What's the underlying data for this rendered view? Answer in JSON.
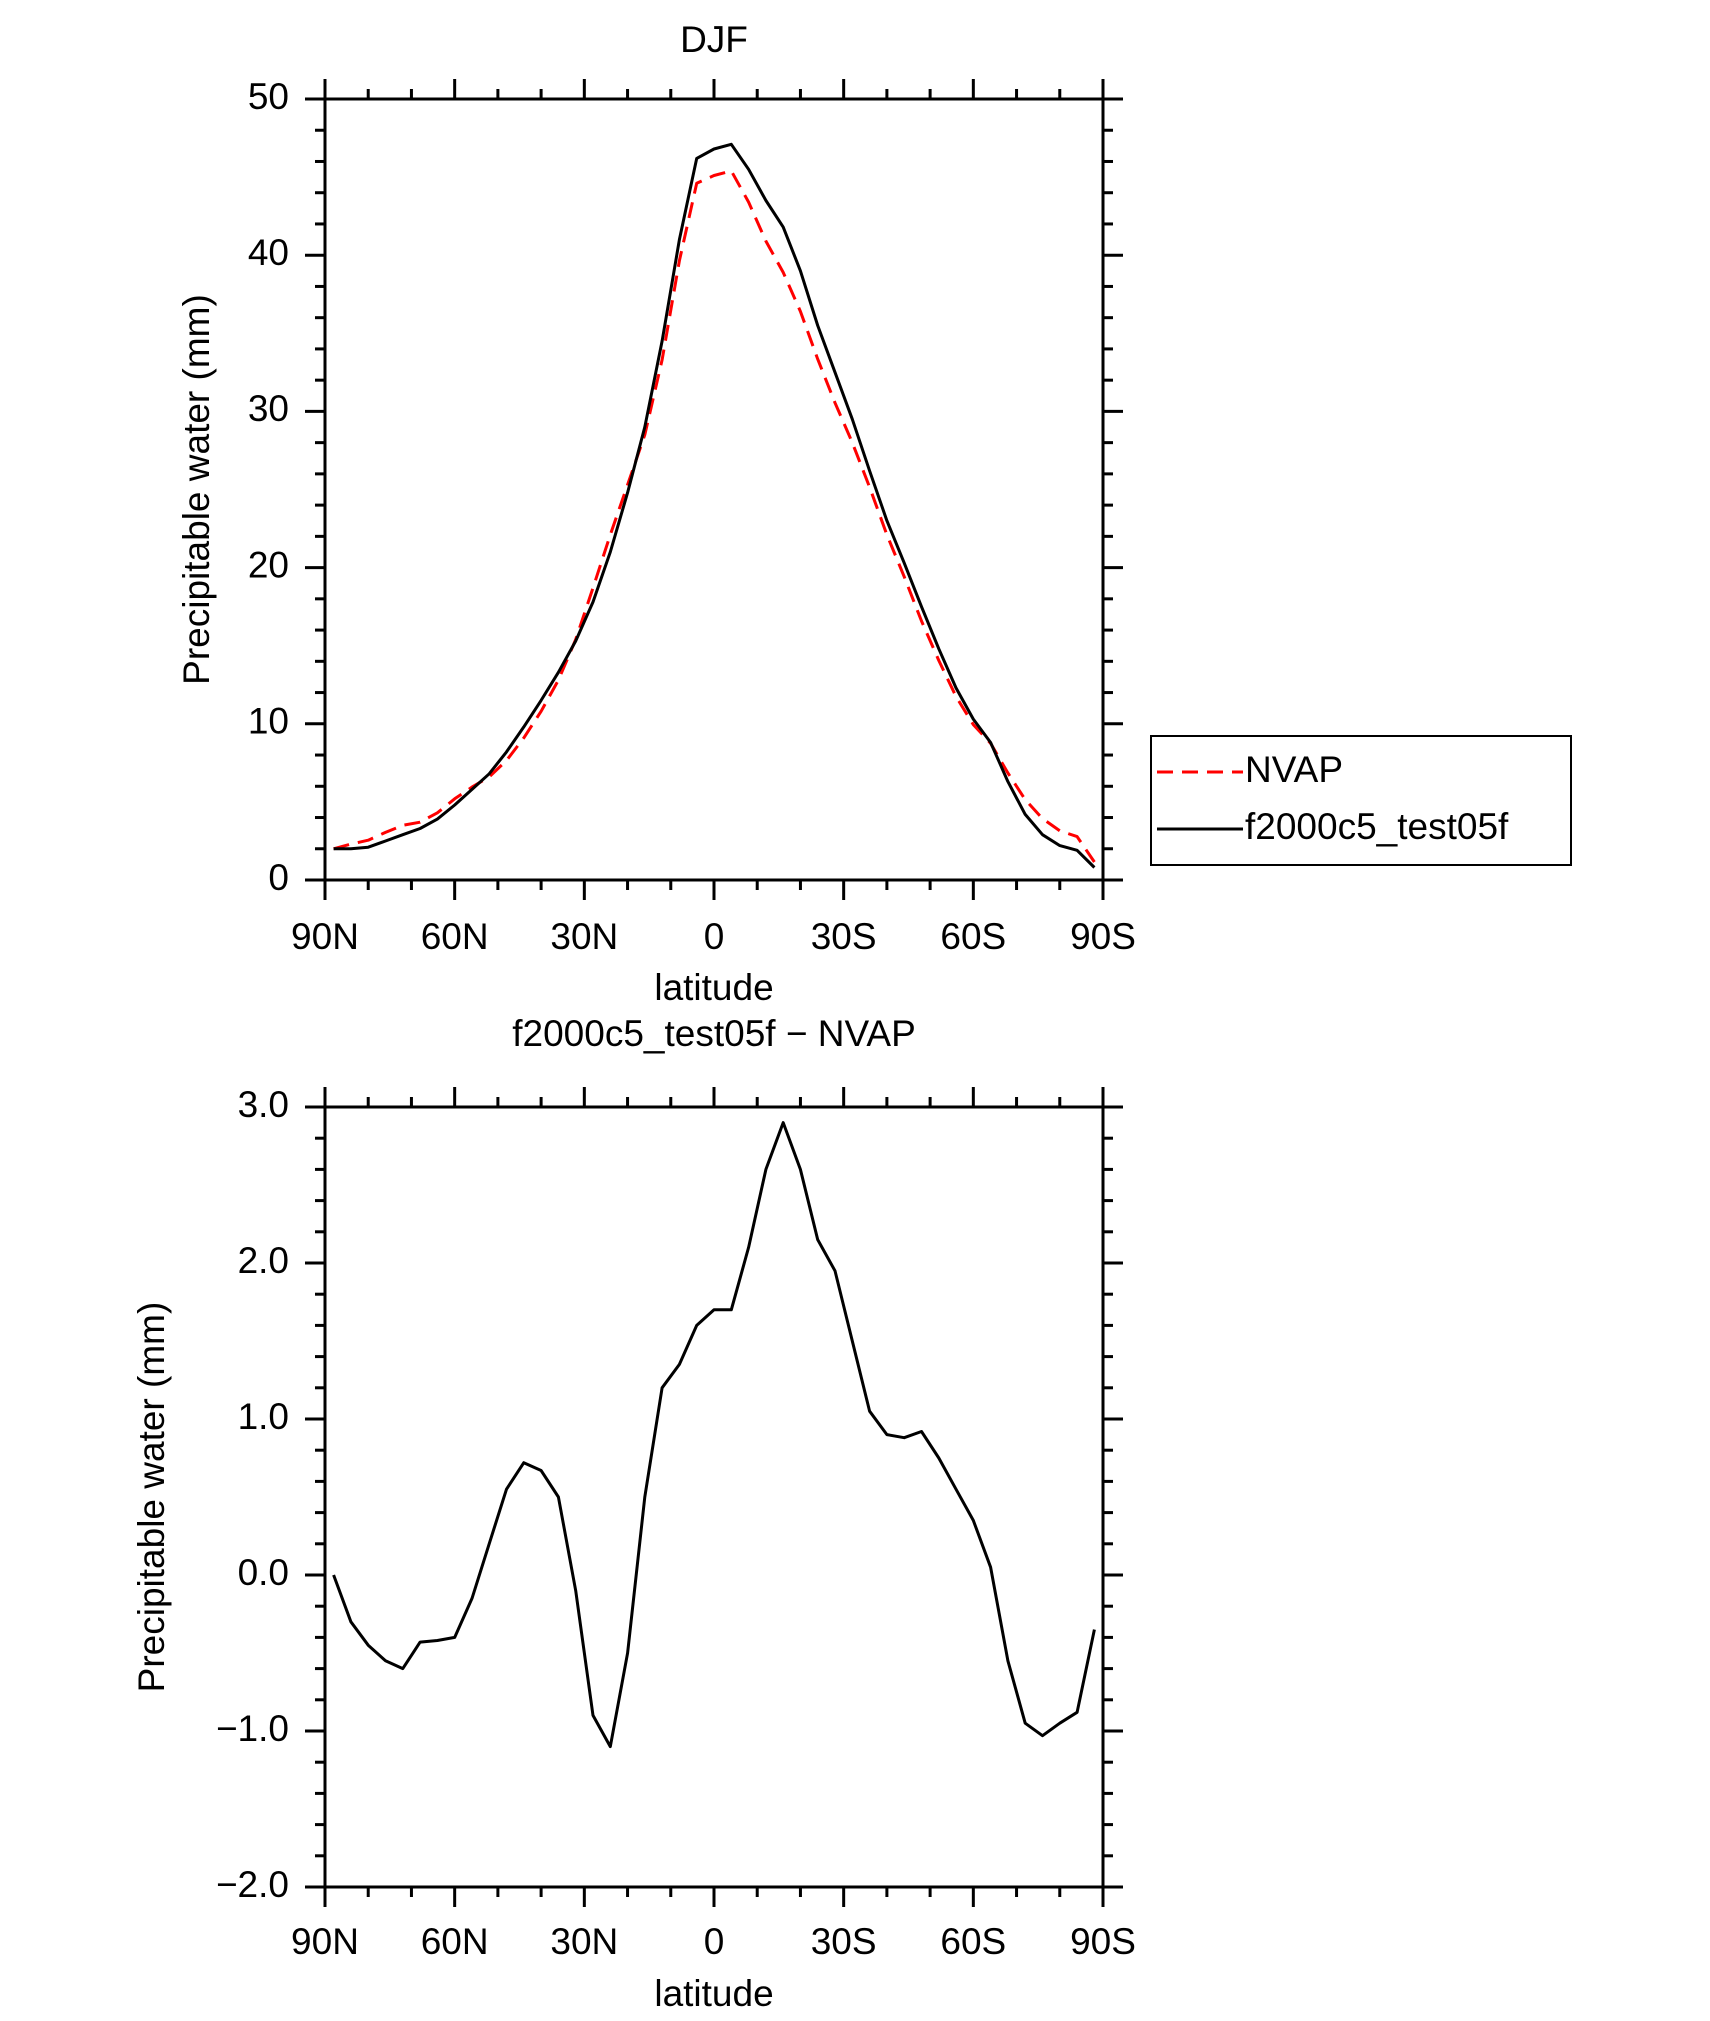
{
  "chart_data": [
    {
      "type": "line",
      "title": "DJF",
      "x_label": "latitude",
      "y_label": "Precipitable water (mm)",
      "x": [
        88,
        84,
        80,
        76,
        72,
        68,
        64,
        60,
        56,
        52,
        48,
        44,
        40,
        36,
        32,
        28,
        24,
        20,
        16,
        12,
        8,
        4,
        0,
        -4,
        -8,
        -12,
        -16,
        -20,
        -24,
        -28,
        -32,
        -36,
        -40,
        -44,
        -48,
        -52,
        -56,
        -60,
        -64,
        -68,
        -72,
        -76,
        -80,
        -84,
        -88
      ],
      "series": [
        {
          "name": "NVAP",
          "color": "#ff0000",
          "dashed": true,
          "values": [
            2.0,
            2.3,
            2.55,
            3.05,
            3.5,
            3.7,
            4.3,
            5.2,
            5.95,
            6.6,
            7.65,
            9.1,
            10.8,
            12.8,
            15.4,
            18.7,
            22.1,
            25.3,
            28.5,
            33.3,
            39.65,
            44.6,
            45.1,
            45.4,
            43.4,
            40.9,
            38.9,
            36.4,
            33.35,
            30.55,
            28.0,
            25.15,
            22.1,
            19.42,
            16.58,
            14.05,
            11.75,
            9.95,
            8.75,
            6.85,
            5.15,
            3.93,
            3.15,
            2.78,
            1.15
          ]
        },
        {
          "name": "f2000c5_test05f",
          "color": "#000000",
          "dashed": false,
          "values": [
            2.0,
            2.0,
            2.1,
            2.5,
            2.9,
            3.3,
            3.9,
            4.8,
            5.8,
            6.8,
            8.2,
            9.8,
            11.5,
            13.3,
            15.3,
            17.8,
            21,
            24.8,
            29,
            34.5,
            41,
            46.2,
            46.8,
            47.1,
            45.5,
            43.5,
            41.8,
            39,
            35.5,
            32.5,
            29.5,
            26.2,
            23,
            20.3,
            17.5,
            14.8,
            12.3,
            10.3,
            8.8,
            6.3,
            4.2,
            2.9,
            2.2,
            1.9,
            0.8
          ]
        }
      ],
      "xlim": [
        90,
        -90
      ],
      "xticks": [
        {
          "value": 90,
          "label": "90N"
        },
        {
          "value": 60,
          "label": "60N"
        },
        {
          "value": 30,
          "label": "30N"
        },
        0,
        {
          "value": -30,
          "label": "30S"
        },
        {
          "value": -60,
          "label": "60S"
        },
        {
          "value": -90,
          "label": "90S"
        }
      ],
      "ylim": [
        0,
        50
      ],
      "yticks": [
        0,
        10,
        20,
        30,
        40,
        50
      ],
      "legend": "right"
    },
    {
      "type": "line",
      "title": "f2000c5_test05f − NVAP",
      "x_label": "latitude",
      "y_label": "Precipitable water (mm)",
      "x": [
        88,
        84,
        80,
        76,
        72,
        68,
        64,
        60,
        56,
        52,
        48,
        44,
        40,
        36,
        32,
        28,
        24,
        20,
        16,
        12,
        8,
        4,
        0,
        -4,
        -8,
        -12,
        -16,
        -20,
        -24,
        -28,
        -32,
        -36,
        -40,
        -44,
        -48,
        -52,
        -56,
        -60,
        -64,
        -68,
        -72,
        -76,
        -80,
        -84,
        -88
      ],
      "series": [
        {
          "color": "#000000",
          "dashed": false,
          "values": [
            0.0,
            -0.3,
            -0.45,
            -0.55,
            -0.6,
            -0.43,
            -0.42,
            -0.4,
            -0.15,
            0.2,
            0.55,
            0.72,
            0.67,
            0.5,
            -0.1,
            -0.9,
            -1.1,
            -0.5,
            0.5,
            1.2,
            1.35,
            1.6,
            1.7,
            1.7,
            2.1,
            2.6,
            2.9,
            2.6,
            2.15,
            1.95,
            1.5,
            1.05,
            0.9,
            0.88,
            0.92,
            0.75,
            0.55,
            0.35,
            0.05,
            -0.55,
            -0.95,
            -1.03,
            -0.95,
            -0.88,
            -0.35
          ]
        }
      ],
      "xlim": [
        90,
        -90
      ],
      "xticks": [
        {
          "value": 90,
          "label": "90N"
        },
        {
          "value": 60,
          "label": "60N"
        },
        {
          "value": 30,
          "label": "30N"
        },
        0,
        {
          "value": -30,
          "label": "30S"
        },
        {
          "value": -60,
          "label": "60S"
        },
        {
          "value": -90,
          "label": "90S"
        }
      ],
      "ylim": [
        -2,
        3
      ],
      "yticks": [
        {
          "value": -2,
          "label": "−2.0"
        },
        {
          "value": -1,
          "label": "−1.0"
        },
        {
          "value": 0,
          "label": "0.0"
        },
        {
          "value": 1,
          "label": "1.0"
        },
        {
          "value": 2,
          "label": "2.0"
        },
        {
          "value": 3,
          "label": "3.0"
        }
      ]
    }
  ]
}
